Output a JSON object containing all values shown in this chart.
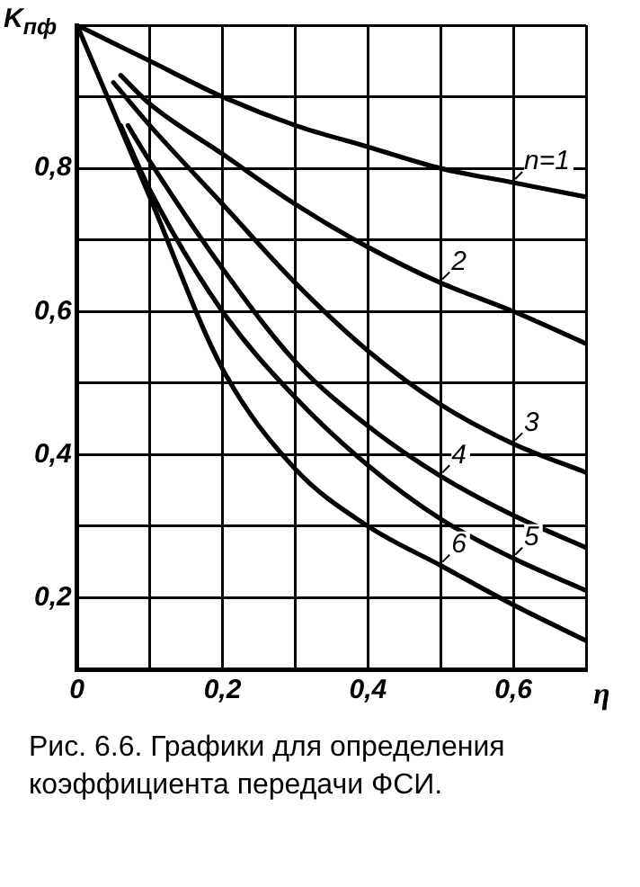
{
  "chart_data": {
    "type": "line",
    "xlabel": "η",
    "ylabel": "K$_{пф}$",
    "annotations": [
      "Рис. 6.6. Графики для определения коэффициента передачи ФСИ."
    ],
    "xlim": [
      0,
      0.7
    ],
    "ylim": [
      0.1,
      1.0
    ],
    "xticks": [
      {
        "value": 0,
        "label": "0"
      },
      {
        "value": 0.1,
        "label": null
      },
      {
        "value": 0.2,
        "label": "0,2"
      },
      {
        "value": 0.3,
        "label": null
      },
      {
        "value": 0.4,
        "label": "0,4"
      },
      {
        "value": 0.5,
        "label": null
      },
      {
        "value": 0.6,
        "label": "0,6"
      },
      {
        "value": 0.7,
        "label": null
      }
    ],
    "yticks": [
      {
        "value": 0.1,
        "label": null
      },
      {
        "value": 0.2,
        "label": "0,2"
      },
      {
        "value": 0.3,
        "label": null
      },
      {
        "value": 0.4,
        "label": "0,4"
      },
      {
        "value": 0.5,
        "label": null
      },
      {
        "value": 0.6,
        "label": "0,6"
      },
      {
        "value": 0.7,
        "label": null
      },
      {
        "value": 0.8,
        "label": "0,8"
      },
      {
        "value": 0.9,
        "label": null
      },
      {
        "value": 1.0,
        "label": null
      }
    ],
    "grid": true,
    "legend": "right",
    "marker": "none",
    "line_style": "solid",
    "series": [
      {
        "name": "n=1",
        "color": "#000000",
        "x": [
          0,
          0.1,
          0.2,
          0.3,
          0.4,
          0.5,
          0.6,
          0.7
        ],
        "values": [
          1,
          0.95,
          0.9,
          0.86,
          0.83,
          0.8,
          0.78,
          0.76
        ]
      },
      {
        "name": "2",
        "color": "#000000",
        "x": [
          0.06,
          0.1,
          0.2,
          0.3,
          0.4,
          0.5,
          0.6,
          0.7
        ],
        "values": [
          0.93,
          0.89,
          0.82,
          0.75,
          0.69,
          0.64,
          0.6,
          0.555
        ]
      },
      {
        "name": "3",
        "color": "#000000",
        "x": [
          0.05,
          0.1,
          0.2,
          0.3,
          0.4,
          0.5,
          0.6,
          0.7
        ],
        "values": [
          0.92,
          0.86,
          0.75,
          0.64,
          0.545,
          0.47,
          0.415,
          0.375
        ]
      },
      {
        "name": "4",
        "color": "#000000",
        "x": [
          0.07,
          0.1,
          0.2,
          0.3,
          0.4,
          0.5,
          0.6,
          0.7
        ],
        "values": [
          0.86,
          0.81,
          0.66,
          0.53,
          0.44,
          0.37,
          0.315,
          0.27
        ]
      },
      {
        "name": "5",
        "color": "#000000",
        "x": [
          0.06,
          0.1,
          0.2,
          0.3,
          0.4,
          0.5,
          0.6,
          0.7
        ],
        "values": [
          0.86,
          0.77,
          0.6,
          0.48,
          0.385,
          0.31,
          0.255,
          0.21
        ]
      },
      {
        "name": "6",
        "color": "#000000",
        "x": [
          0,
          0.1,
          0.2,
          0.3,
          0.4,
          0.5,
          0.6,
          0.7
        ],
        "values": [
          1,
          0.76,
          0.52,
          0.38,
          0.3,
          0.245,
          0.19,
          0.14
        ]
      }
    ]
  }
}
